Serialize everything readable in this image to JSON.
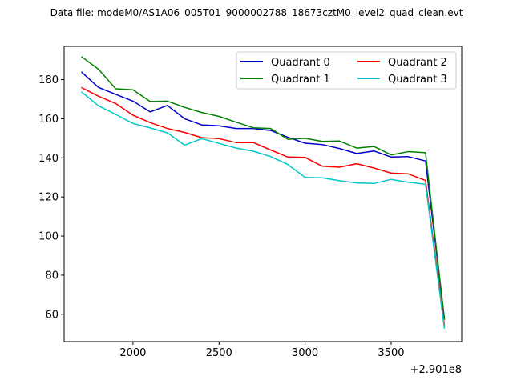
{
  "chart_data": {
    "type": "line",
    "title": "Data file: modeM0/AS1A06_005T01_9000002788_18673cztM0_level2_quad_clean.evt",
    "xlabel": "",
    "ylabel": "",
    "x_offset_label": "+2.901e8",
    "xlim": [
      1600,
      3910
    ],
    "ylim": [
      46,
      197
    ],
    "x_ticks": [
      2000,
      2500,
      3000,
      3500
    ],
    "x_tick_labels": [
      "2000",
      "2500",
      "3000",
      "3500"
    ],
    "y_ticks": [
      60,
      80,
      100,
      120,
      140,
      160,
      180
    ],
    "y_tick_labels": [
      "60",
      "80",
      "100",
      "120",
      "140",
      "160",
      "180"
    ],
    "grid": false,
    "legend_position": "top-right",
    "x": [
      1700,
      1800,
      1900,
      2000,
      2100,
      2200,
      2300,
      2400,
      2500,
      2600,
      2700,
      2800,
      2900,
      3000,
      3100,
      3200,
      3300,
      3400,
      3500,
      3600,
      3700,
      3810
    ],
    "series": [
      {
        "name": "Quadrant 0",
        "color": "#0000cc",
        "values": [
          184,
          176,
          172.5,
          169,
          163.5,
          166.8,
          160,
          156.8,
          156.4,
          155,
          155,
          154,
          150.5,
          147.5,
          146.8,
          144.8,
          142.2,
          143.5,
          140.4,
          140.6,
          138.4,
          57.5
        ]
      },
      {
        "name": "Quadrant 1",
        "color": "#008000",
        "values": [
          191.8,
          185.3,
          175.3,
          174.8,
          168.8,
          169,
          165.8,
          163.2,
          161.2,
          158.2,
          155.4,
          155,
          149.5,
          150,
          148.4,
          148.6,
          145,
          145.8,
          141.5,
          143.2,
          142.6,
          57.2
        ]
      },
      {
        "name": "Quadrant 2",
        "color": "#ff0000",
        "values": [
          176,
          171.5,
          167.8,
          161.8,
          158,
          155,
          153,
          150.3,
          149.8,
          147.8,
          147.8,
          144,
          140.4,
          140.2,
          135.7,
          135.2,
          137,
          134.8,
          132.2,
          131.8,
          128.4,
          54
        ]
      },
      {
        "name": "Quadrant 3",
        "color": "#00c8c8",
        "values": [
          173.8,
          166.6,
          162.2,
          157.6,
          155.3,
          152.8,
          146.5,
          149.8,
          147.4,
          145,
          143.4,
          140.6,
          136.6,
          130,
          129.8,
          128.3,
          127.2,
          126.9,
          129,
          127.5,
          126.5,
          52.6
        ]
      }
    ]
  }
}
